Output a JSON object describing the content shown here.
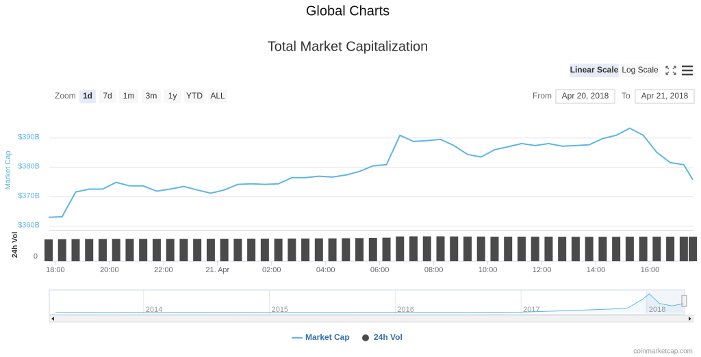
{
  "header": {
    "title": "Global Charts"
  },
  "chart_data": {
    "type": "line",
    "title": "Total Market Capitalization",
    "scale_buttons": [
      "Linear Scale",
      "Log Scale"
    ],
    "scale_selected": 0,
    "zoom": {
      "label": "Zoom",
      "buttons": [
        "1d",
        "7d",
        "1m",
        "3m",
        "1y",
        "YTD",
        "ALL"
      ],
      "selected": 0
    },
    "range": {
      "from_label": "From",
      "from": "Apr 20, 2018",
      "to_label": "To",
      "to": "Apr 21, 2018"
    },
    "y_label": "Market Cap",
    "y2_label": "24h Vol",
    "x": [
      "2018-04-20T17:45",
      "2018-04-20T18:15",
      "2018-04-20T18:45",
      "2018-04-20T19:15",
      "2018-04-20T19:45",
      "2018-04-20T20:15",
      "2018-04-20T20:45",
      "2018-04-20T21:15",
      "2018-04-20T21:45",
      "2018-04-20T22:15",
      "2018-04-20T22:45",
      "2018-04-20T23:15",
      "2018-04-20T23:45",
      "2018-04-21T00:15",
      "2018-04-21T00:45",
      "2018-04-21T01:15",
      "2018-04-21T01:45",
      "2018-04-21T02:15",
      "2018-04-21T02:45",
      "2018-04-21T03:15",
      "2018-04-21T03:45",
      "2018-04-21T04:15",
      "2018-04-21T04:45",
      "2018-04-21T05:15",
      "2018-04-21T05:45",
      "2018-04-21T06:15",
      "2018-04-21T06:45",
      "2018-04-21T07:15",
      "2018-04-21T07:45",
      "2018-04-21T08:15",
      "2018-04-21T08:45",
      "2018-04-21T09:15",
      "2018-04-21T09:45",
      "2018-04-21T10:15",
      "2018-04-21T10:45",
      "2018-04-21T11:15",
      "2018-04-21T11:45",
      "2018-04-21T12:15",
      "2018-04-21T12:45",
      "2018-04-21T13:15",
      "2018-04-21T13:45",
      "2018-04-21T14:15",
      "2018-04-21T14:45",
      "2018-04-21T15:15",
      "2018-04-21T15:45",
      "2018-04-21T16:15",
      "2018-04-21T16:45",
      "2018-04-21T17:15",
      "2018-04-21T17:35"
    ],
    "xlim": [
      "2018-04-20T17:45",
      "2018-04-21T17:35"
    ],
    "xticks": [
      {
        "value": "2018-04-20T18:00",
        "label": "18:00"
      },
      {
        "value": "2018-04-20T20:00",
        "label": "20:00"
      },
      {
        "value": "2018-04-20T22:00",
        "label": "22:00"
      },
      {
        "value": "2018-04-21T00:00",
        "label": "21. Apr"
      },
      {
        "value": "2018-04-21T02:00",
        "label": "02:00"
      },
      {
        "value": "2018-04-21T04:00",
        "label": "04:00"
      },
      {
        "value": "2018-04-21T06:00",
        "label": "06:00"
      },
      {
        "value": "2018-04-21T08:00",
        "label": "08:00"
      },
      {
        "value": "2018-04-21T10:00",
        "label": "10:00"
      },
      {
        "value": "2018-04-21T12:00",
        "label": "12:00"
      },
      {
        "value": "2018-04-21T14:00",
        "label": "14:00"
      },
      {
        "value": "2018-04-21T16:00",
        "label": "16:00"
      }
    ],
    "ylim": [
      359,
      399
    ],
    "yticks": [
      {
        "value": 360,
        "label": "$360B"
      },
      {
        "value": 370,
        "label": "$370B"
      },
      {
        "value": 380,
        "label": "$380B"
      },
      {
        "value": 390,
        "label": "$390B"
      }
    ],
    "grid": true,
    "y2lim": [
      0,
      25
    ],
    "y2ticks": [
      0
    ],
    "series": [
      {
        "name": "Market Cap",
        "color": "#5cb6e4",
        "values": [
          363.0,
          363.2,
          371.6,
          372.6,
          372.6,
          374.9,
          373.7,
          373.7,
          371.9,
          372.6,
          373.5,
          372.3,
          371.2,
          372.3,
          374.2,
          374.4,
          374.2,
          374.4,
          376.5,
          376.5,
          377.0,
          376.7,
          377.4,
          378.6,
          380.5,
          380.9,
          390.9,
          388.8,
          389.1,
          389.5,
          387.4,
          384.4,
          383.5,
          386.0,
          387.0,
          388.1,
          387.4,
          388.1,
          387.2,
          387.4,
          387.7,
          389.8,
          390.9,
          393.3,
          390.9,
          385.1,
          381.6,
          380.9,
          375.8
        ]
      },
      {
        "name": "24h Vol",
        "color": "#4a4a4a",
        "type": "bar",
        "axis": "y2",
        "values": [
          19.0,
          19.2,
          19.3,
          19.4,
          19.4,
          19.5,
          19.5,
          19.5,
          19.5,
          19.5,
          19.5,
          19.5,
          19.6,
          19.6,
          19.6,
          19.7,
          19.7,
          19.7,
          19.8,
          19.8,
          19.9,
          19.9,
          20.0,
          20.1,
          20.3,
          20.5,
          21.6,
          21.7,
          21.7,
          21.7,
          21.6,
          21.5,
          21.5,
          21.4,
          21.4,
          21.4,
          21.4,
          21.4,
          21.3,
          21.3,
          21.3,
          21.3,
          21.3,
          21.4,
          21.4,
          21.4,
          21.4,
          21.4,
          21.4
        ]
      }
    ],
    "legend": "bottom",
    "navigator": {
      "x": [
        2013.3,
        2013.9,
        2014.0,
        2014.5,
        2015.0,
        2015.5,
        2016.0,
        2016.5,
        2017.0,
        2017.4,
        2017.7,
        2017.85,
        2017.97,
        2018.02,
        2018.1,
        2018.2,
        2018.29
      ],
      "values": [
        1.5,
        12,
        10,
        8,
        4,
        4,
        7,
        10,
        17,
        90,
        150,
        200,
        600,
        820,
        400,
        290,
        390
      ],
      "xlim": [
        2013.25,
        2018.3
      ],
      "ylim": [
        0,
        900
      ],
      "xticks": [
        2014,
        2015,
        2016,
        2017,
        2018
      ],
      "color": "#5cb6e4"
    },
    "credit": "coinmarketcap.com"
  }
}
